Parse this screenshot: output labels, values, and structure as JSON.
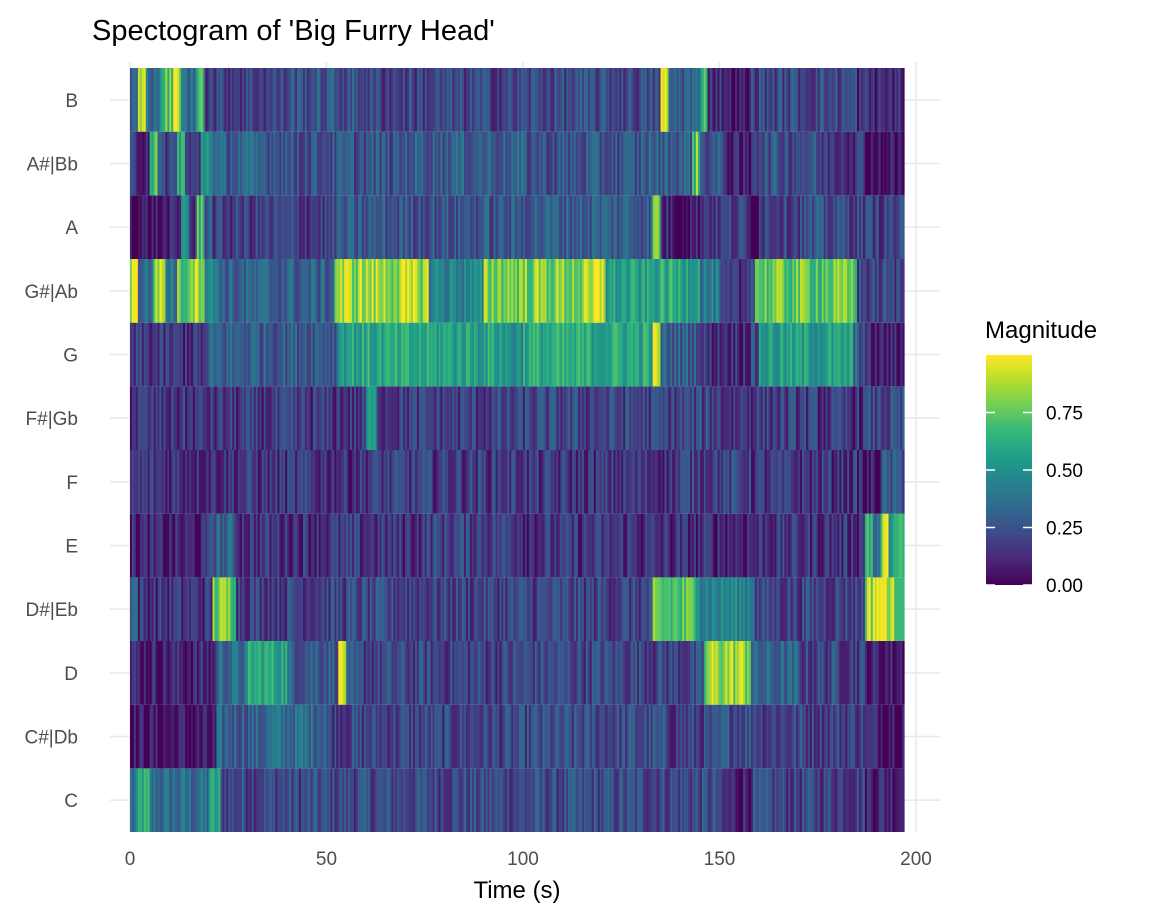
{
  "chart_data": {
    "type": "heatmap",
    "title": "Spectogram of 'Big Furry Head'",
    "xlabel": "Time (s)",
    "ylabel": "",
    "xlim": [
      0,
      200
    ],
    "x_ticks": [
      0,
      50,
      100,
      150,
      200
    ],
    "x_extent": [
      0,
      197
    ],
    "y_categories": [
      "C",
      "C#|Db",
      "D",
      "D#|Eb",
      "E",
      "F",
      "F#|Gb",
      "G",
      "G#|Ab",
      "A",
      "A#|Bb",
      "B"
    ],
    "grid": true,
    "legend": {
      "title": "Magnitude",
      "position": "right",
      "ticks": [
        0.0,
        0.25,
        0.5,
        0.75
      ],
      "tick_labels": [
        "0.00",
        "0.25",
        "0.50",
        "0.75"
      ],
      "range": [
        0,
        1
      ]
    },
    "colormap": [
      "#440154",
      "#482878",
      "#3e4a89",
      "#31688e",
      "#26828e",
      "#1f9e89",
      "#35b779",
      "#6ece58",
      "#b5de2b",
      "#fde725"
    ],
    "segments": {
      "B": [
        [
          0,
          2,
          0.3
        ],
        [
          2,
          4,
          0.85
        ],
        [
          4,
          8,
          0.4
        ],
        [
          8,
          11,
          0.7
        ],
        [
          11,
          13,
          0.9
        ],
        [
          13,
          17,
          0.35
        ],
        [
          17,
          19,
          0.75
        ],
        [
          19,
          40,
          0.2
        ],
        [
          40,
          60,
          0.25
        ],
        [
          60,
          100,
          0.2
        ],
        [
          100,
          135,
          0.22
        ],
        [
          135,
          137,
          0.9
        ],
        [
          137,
          145,
          0.3
        ],
        [
          145,
          147,
          0.7
        ],
        [
          147,
          152,
          0.15
        ],
        [
          152,
          158,
          0.04
        ],
        [
          158,
          185,
          0.22
        ],
        [
          185,
          197,
          0.12
        ]
      ],
      "A#|Bb": [
        [
          0,
          5,
          0.15
        ],
        [
          5,
          7,
          0.7
        ],
        [
          7,
          12,
          0.2
        ],
        [
          12,
          14,
          0.65
        ],
        [
          14,
          18,
          0.15
        ],
        [
          18,
          21,
          0.55
        ],
        [
          21,
          40,
          0.3
        ],
        [
          40,
          70,
          0.25
        ],
        [
          70,
          100,
          0.3
        ],
        [
          100,
          130,
          0.25
        ],
        [
          130,
          143,
          0.3
        ],
        [
          143,
          145,
          0.75
        ],
        [
          145,
          152,
          0.25
        ],
        [
          152,
          158,
          0.06
        ],
        [
          158,
          175,
          0.25
        ],
        [
          175,
          187,
          0.18
        ],
        [
          187,
          197,
          0.05
        ]
      ],
      "A": [
        [
          0,
          13,
          0.05
        ],
        [
          13,
          15,
          0.55
        ],
        [
          15,
          17,
          0.12
        ],
        [
          17,
          19,
          0.7
        ],
        [
          19,
          21,
          0.3
        ],
        [
          21,
          52,
          0.18
        ],
        [
          52,
          100,
          0.26
        ],
        [
          100,
          133,
          0.3
        ],
        [
          133,
          135,
          0.8
        ],
        [
          135,
          137,
          0.12
        ],
        [
          137,
          145,
          0.08
        ],
        [
          145,
          157,
          0.18
        ],
        [
          157,
          160,
          0.05
        ],
        [
          160,
          185,
          0.22
        ],
        [
          185,
          197,
          0.2
        ]
      ],
      "G#|Ab": [
        [
          0,
          2,
          0.95
        ],
        [
          2,
          6,
          0.35
        ],
        [
          6,
          9,
          0.9
        ],
        [
          9,
          12,
          0.4
        ],
        [
          12,
          15,
          0.75
        ],
        [
          15,
          19,
          0.9
        ],
        [
          19,
          23,
          0.45
        ],
        [
          23,
          52,
          0.3
        ],
        [
          52,
          76,
          0.85
        ],
        [
          76,
          90,
          0.45
        ],
        [
          90,
          118,
          0.8
        ],
        [
          118,
          121,
          0.95
        ],
        [
          121,
          133,
          0.55
        ],
        [
          133,
          145,
          0.6
        ],
        [
          145,
          150,
          0.4
        ],
        [
          150,
          157,
          0.12
        ],
        [
          157,
          159,
          0.3
        ],
        [
          159,
          185,
          0.75
        ],
        [
          185,
          197,
          0.2
        ]
      ],
      "G": [
        [
          0,
          20,
          0.15
        ],
        [
          20,
          53,
          0.3
        ],
        [
          53,
          95,
          0.58
        ],
        [
          95,
          100,
          0.5
        ],
        [
          100,
          133,
          0.6
        ],
        [
          133,
          135,
          0.85
        ],
        [
          135,
          145,
          0.3
        ],
        [
          145,
          158,
          0.15
        ],
        [
          158,
          160,
          0.2
        ],
        [
          160,
          184,
          0.55
        ],
        [
          184,
          187,
          0.3
        ],
        [
          187,
          197,
          0.08
        ]
      ],
      "F#|Gb": [
        [
          0,
          60,
          0.15
        ],
        [
          60,
          63,
          0.5
        ],
        [
          63,
          100,
          0.18
        ],
        [
          100,
          150,
          0.2
        ],
        [
          150,
          155,
          0.15
        ],
        [
          155,
          175,
          0.18
        ],
        [
          175,
          187,
          0.15
        ],
        [
          187,
          197,
          0.2
        ]
      ],
      "F": [
        [
          0,
          60,
          0.15
        ],
        [
          60,
          100,
          0.18
        ],
        [
          100,
          140,
          0.15
        ],
        [
          140,
          158,
          0.2
        ],
        [
          158,
          186,
          0.15
        ],
        [
          186,
          191,
          0.05
        ],
        [
          191,
          197,
          0.25
        ]
      ],
      "E": [
        [
          0,
          20,
          0.08
        ],
        [
          20,
          27,
          0.3
        ],
        [
          27,
          75,
          0.15
        ],
        [
          75,
          100,
          0.2
        ],
        [
          100,
          130,
          0.15
        ],
        [
          130,
          160,
          0.12
        ],
        [
          160,
          187,
          0.15
        ],
        [
          187,
          189,
          0.7
        ],
        [
          189,
          191,
          0.3
        ],
        [
          191,
          193,
          0.85
        ],
        [
          193,
          197,
          0.6
        ]
      ],
      "D#|Eb": [
        [
          0,
          2,
          0.35
        ],
        [
          2,
          21,
          0.15
        ],
        [
          21,
          27,
          0.78
        ],
        [
          27,
          133,
          0.2
        ],
        [
          133,
          145,
          0.7
        ],
        [
          145,
          159,
          0.45
        ],
        [
          159,
          187,
          0.2
        ],
        [
          187,
          189,
          0.85
        ],
        [
          189,
          193,
          0.98
        ],
        [
          193,
          197,
          0.8
        ]
      ],
      "D": [
        [
          0,
          22,
          0.1
        ],
        [
          22,
          30,
          0.35
        ],
        [
          30,
          40,
          0.6
        ],
        [
          40,
          53,
          0.3
        ],
        [
          53,
          55,
          0.95
        ],
        [
          55,
          100,
          0.2
        ],
        [
          100,
          133,
          0.22
        ],
        [
          133,
          146,
          0.2
        ],
        [
          146,
          147,
          0.7
        ],
        [
          147,
          158,
          0.85
        ],
        [
          158,
          170,
          0.3
        ],
        [
          170,
          187,
          0.2
        ],
        [
          187,
          197,
          0.08
        ]
      ],
      "C#|Db": [
        [
          0,
          22,
          0.05
        ],
        [
          22,
          34,
          0.3
        ],
        [
          34,
          50,
          0.35
        ],
        [
          50,
          100,
          0.2
        ],
        [
          100,
          136,
          0.22
        ],
        [
          136,
          150,
          0.18
        ],
        [
          150,
          160,
          0.25
        ],
        [
          160,
          187,
          0.2
        ],
        [
          187,
          197,
          0.1
        ]
      ],
      "C": [
        [
          0,
          2,
          0.35
        ],
        [
          2,
          5,
          0.6
        ],
        [
          5,
          20,
          0.35
        ],
        [
          20,
          23,
          0.55
        ],
        [
          23,
          100,
          0.22
        ],
        [
          100,
          150,
          0.22
        ],
        [
          150,
          158,
          0.1
        ],
        [
          158,
          187,
          0.2
        ],
        [
          187,
          197,
          0.12
        ]
      ]
    }
  }
}
